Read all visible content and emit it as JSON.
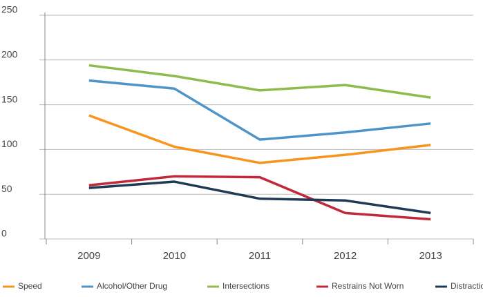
{
  "chart_data": {
    "type": "line",
    "categories": [
      "2009",
      "2010",
      "2011",
      "2012",
      "2013"
    ],
    "series": [
      {
        "name": "Speed",
        "color": "#f7941d",
        "values": [
          138,
          103,
          85,
          94,
          105
        ]
      },
      {
        "name": "Alcohol/Other Drug",
        "color": "#4d94c8",
        "values": [
          177,
          168,
          111,
          119,
          129
        ]
      },
      {
        "name": "Intersections",
        "color": "#8dbb4c",
        "values": [
          194,
          182,
          166,
          172,
          158
        ]
      },
      {
        "name": "Restrains Not Worn",
        "color": "#c1283a",
        "values": [
          60,
          70,
          69,
          29,
          22
        ]
      },
      {
        "name": "Distractions",
        "color": "#1f3a54",
        "values": [
          57,
          64,
          45,
          43,
          29
        ]
      }
    ],
    "ylim": [
      0,
      250
    ],
    "yticks": [
      0,
      50,
      100,
      150,
      200,
      250
    ],
    "grid": true,
    "legend": "bottom"
  }
}
